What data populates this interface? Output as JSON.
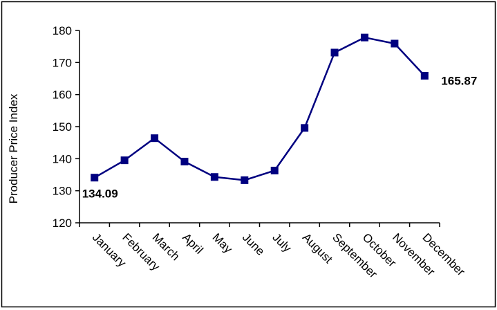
{
  "chart_data": {
    "type": "line",
    "title": "",
    "xlabel": "",
    "ylabel": "Producer Price Index",
    "categories": [
      "January",
      "February",
      "March",
      "April",
      "May",
      "June",
      "July",
      "August",
      "September",
      "October",
      "November",
      "December"
    ],
    "series": [
      {
        "values": [
          134.09,
          139.5,
          146.4,
          139.1,
          134.3,
          133.3,
          136.3,
          149.6,
          173.1,
          177.8,
          175.9,
          165.87
        ]
      }
    ],
    "ylim": [
      120,
      180
    ],
    "yticks": [
      120,
      130,
      140,
      150,
      160,
      170,
      180
    ],
    "grid": false,
    "legend": "none",
    "data_labels": [
      {
        "index": 0,
        "text": "134.09"
      },
      {
        "index": 11,
        "text": "165.87"
      }
    ],
    "colors": {
      "series": "#000080",
      "axis": "#000000",
      "border": "#000000",
      "background": "#ffffff"
    }
  }
}
